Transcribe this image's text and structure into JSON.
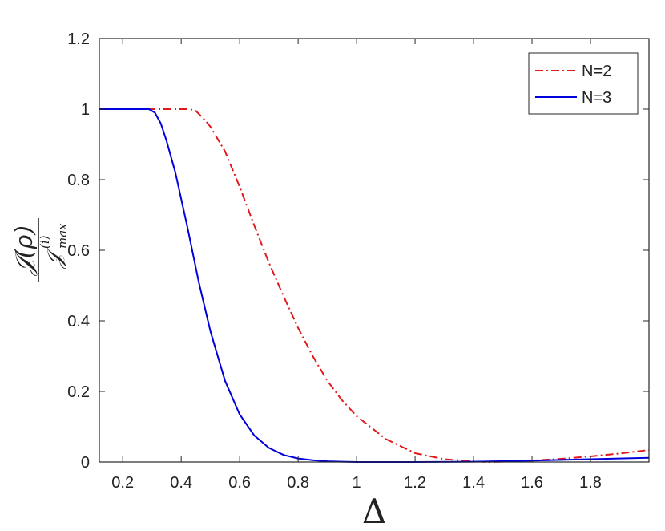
{
  "chart_data": {
    "type": "line",
    "xlabel": "Δ",
    "ylabel": {
      "numerator": "𝒥(ρ)",
      "denominator": "𝒥",
      "superscript": "(i)",
      "subscript": "max"
    },
    "xlim": [
      0.12,
      2.0
    ],
    "ylim": [
      0,
      1.2
    ],
    "xticks": [
      0.2,
      0.4,
      0.6,
      0.8,
      1.0,
      1.2,
      1.4,
      1.6,
      1.8
    ],
    "xtick_labels": [
      "0.2",
      "0.4",
      "0.6",
      "0.8",
      "1",
      "1.2",
      "1.4",
      "1.6",
      "1.8"
    ],
    "yticks": [
      0,
      0.2,
      0.4,
      0.6,
      0.8,
      1.0,
      1.2
    ],
    "ytick_labels": [
      "0",
      "0.2",
      "0.4",
      "0.6",
      "0.8",
      "1",
      "1.2"
    ],
    "grid": false,
    "legend_position": "top-right",
    "series": [
      {
        "name": "N=2",
        "color": "#e31a1c",
        "style": "dash-dot",
        "x": [
          0.12,
          0.2,
          0.28,
          0.35,
          0.4,
          0.43,
          0.45,
          0.48,
          0.5,
          0.55,
          0.6,
          0.65,
          0.7,
          0.75,
          0.8,
          0.85,
          0.9,
          0.95,
          1.0,
          1.1,
          1.2,
          1.3,
          1.4,
          1.45,
          1.5,
          1.6,
          1.7,
          1.8,
          1.9,
          2.0
        ],
        "y": [
          1.0,
          1.0,
          1.0,
          1.0,
          1.0,
          1.0,
          0.995,
          0.97,
          0.95,
          0.88,
          0.78,
          0.67,
          0.565,
          0.47,
          0.38,
          0.3,
          0.23,
          0.175,
          0.13,
          0.065,
          0.025,
          0.008,
          0.002,
          0.0,
          0.001,
          0.004,
          0.009,
          0.016,
          0.024,
          0.034
        ]
      },
      {
        "name": "N=3",
        "color": "#0000dd",
        "style": "solid",
        "x": [
          0.12,
          0.2,
          0.25,
          0.29,
          0.31,
          0.33,
          0.35,
          0.38,
          0.4,
          0.42,
          0.44,
          0.46,
          0.48,
          0.5,
          0.55,
          0.6,
          0.65,
          0.7,
          0.75,
          0.8,
          0.85,
          0.9,
          0.95,
          1.0,
          1.1,
          1.2,
          1.4,
          1.6,
          1.8,
          2.0
        ],
        "y": [
          1.0,
          1.0,
          1.0,
          1.0,
          0.99,
          0.96,
          0.91,
          0.82,
          0.745,
          0.67,
          0.59,
          0.51,
          0.44,
          0.37,
          0.23,
          0.135,
          0.075,
          0.04,
          0.02,
          0.01,
          0.005,
          0.002,
          0.001,
          0.0,
          0.0,
          0.0,
          0.001,
          0.004,
          0.008,
          0.012
        ]
      }
    ]
  }
}
